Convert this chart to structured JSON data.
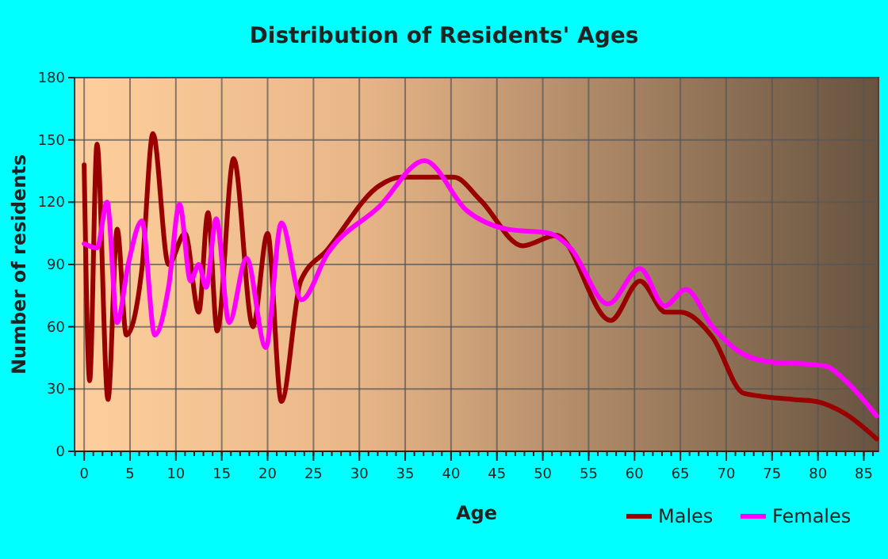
{
  "chart_data": {
    "type": "line",
    "title": "Distribution of Residents' Ages",
    "xlabel": "Age",
    "ylabel": "Number of residents",
    "xlim": [
      -1.05,
      86.6
    ],
    "xticks": [
      0,
      5,
      10,
      15,
      20,
      25,
      30,
      35,
      40,
      45,
      50,
      55,
      60,
      65,
      70,
      75,
      80,
      85
    ],
    "ylim": [
      0,
      180
    ],
    "yticks": [
      0,
      30,
      60,
      90,
      120,
      150,
      180
    ],
    "grid": true,
    "legend": "bottom right",
    "line_style": "solid",
    "series": [
      {
        "name": "Males",
        "color": "#990000",
        "x": [
          0,
          0.6,
          1.4,
          2.6,
          3.6,
          4.6,
          6.3,
          7.5,
          9.2,
          11,
          12.5,
          13.5,
          14.5,
          16.3,
          18.4,
          20,
          21.5,
          23.6,
          26.5,
          32.2,
          34.5,
          40.3,
          43.2,
          47.8,
          51.5,
          57.4,
          60.6,
          63.4,
          65,
          68.5,
          71.9,
          77.3,
          79.8,
          83,
          86.4
        ],
        "values": [
          138,
          34,
          148,
          25,
          107,
          56,
          88,
          153,
          90,
          105,
          67,
          115,
          58,
          141,
          60,
          105,
          24,
          82,
          97,
          128,
          132,
          132,
          121,
          99,
          104,
          63,
          82,
          67,
          67,
          55,
          28,
          25,
          24,
          18,
          6
        ]
      },
      {
        "name": "Females",
        "color": "#ff00ff",
        "x": [
          0,
          1.4,
          2.5,
          3.6,
          4.8,
          6.3,
          7.7,
          9.2,
          10.4,
          11.6,
          12.5,
          13.3,
          14.4,
          15.8,
          17.7,
          19.8,
          21.5,
          23.7,
          26.5,
          32.2,
          37.1,
          41.7,
          46.1,
          50.7,
          53,
          57.1,
          60.6,
          63.3,
          65.6,
          68.5,
          71.4,
          74.9,
          78.9,
          80.9,
          83,
          86.4
        ],
        "values": [
          100,
          98,
          120,
          62,
          90,
          111,
          56,
          79,
          119,
          82,
          90,
          79,
          112,
          62,
          93,
          50,
          110,
          73,
          95,
          118,
          140,
          116,
          107,
          105,
          98,
          71,
          88,
          70,
          78,
          60,
          48,
          43,
          42,
          41,
          34,
          17
        ]
      }
    ]
  }
}
